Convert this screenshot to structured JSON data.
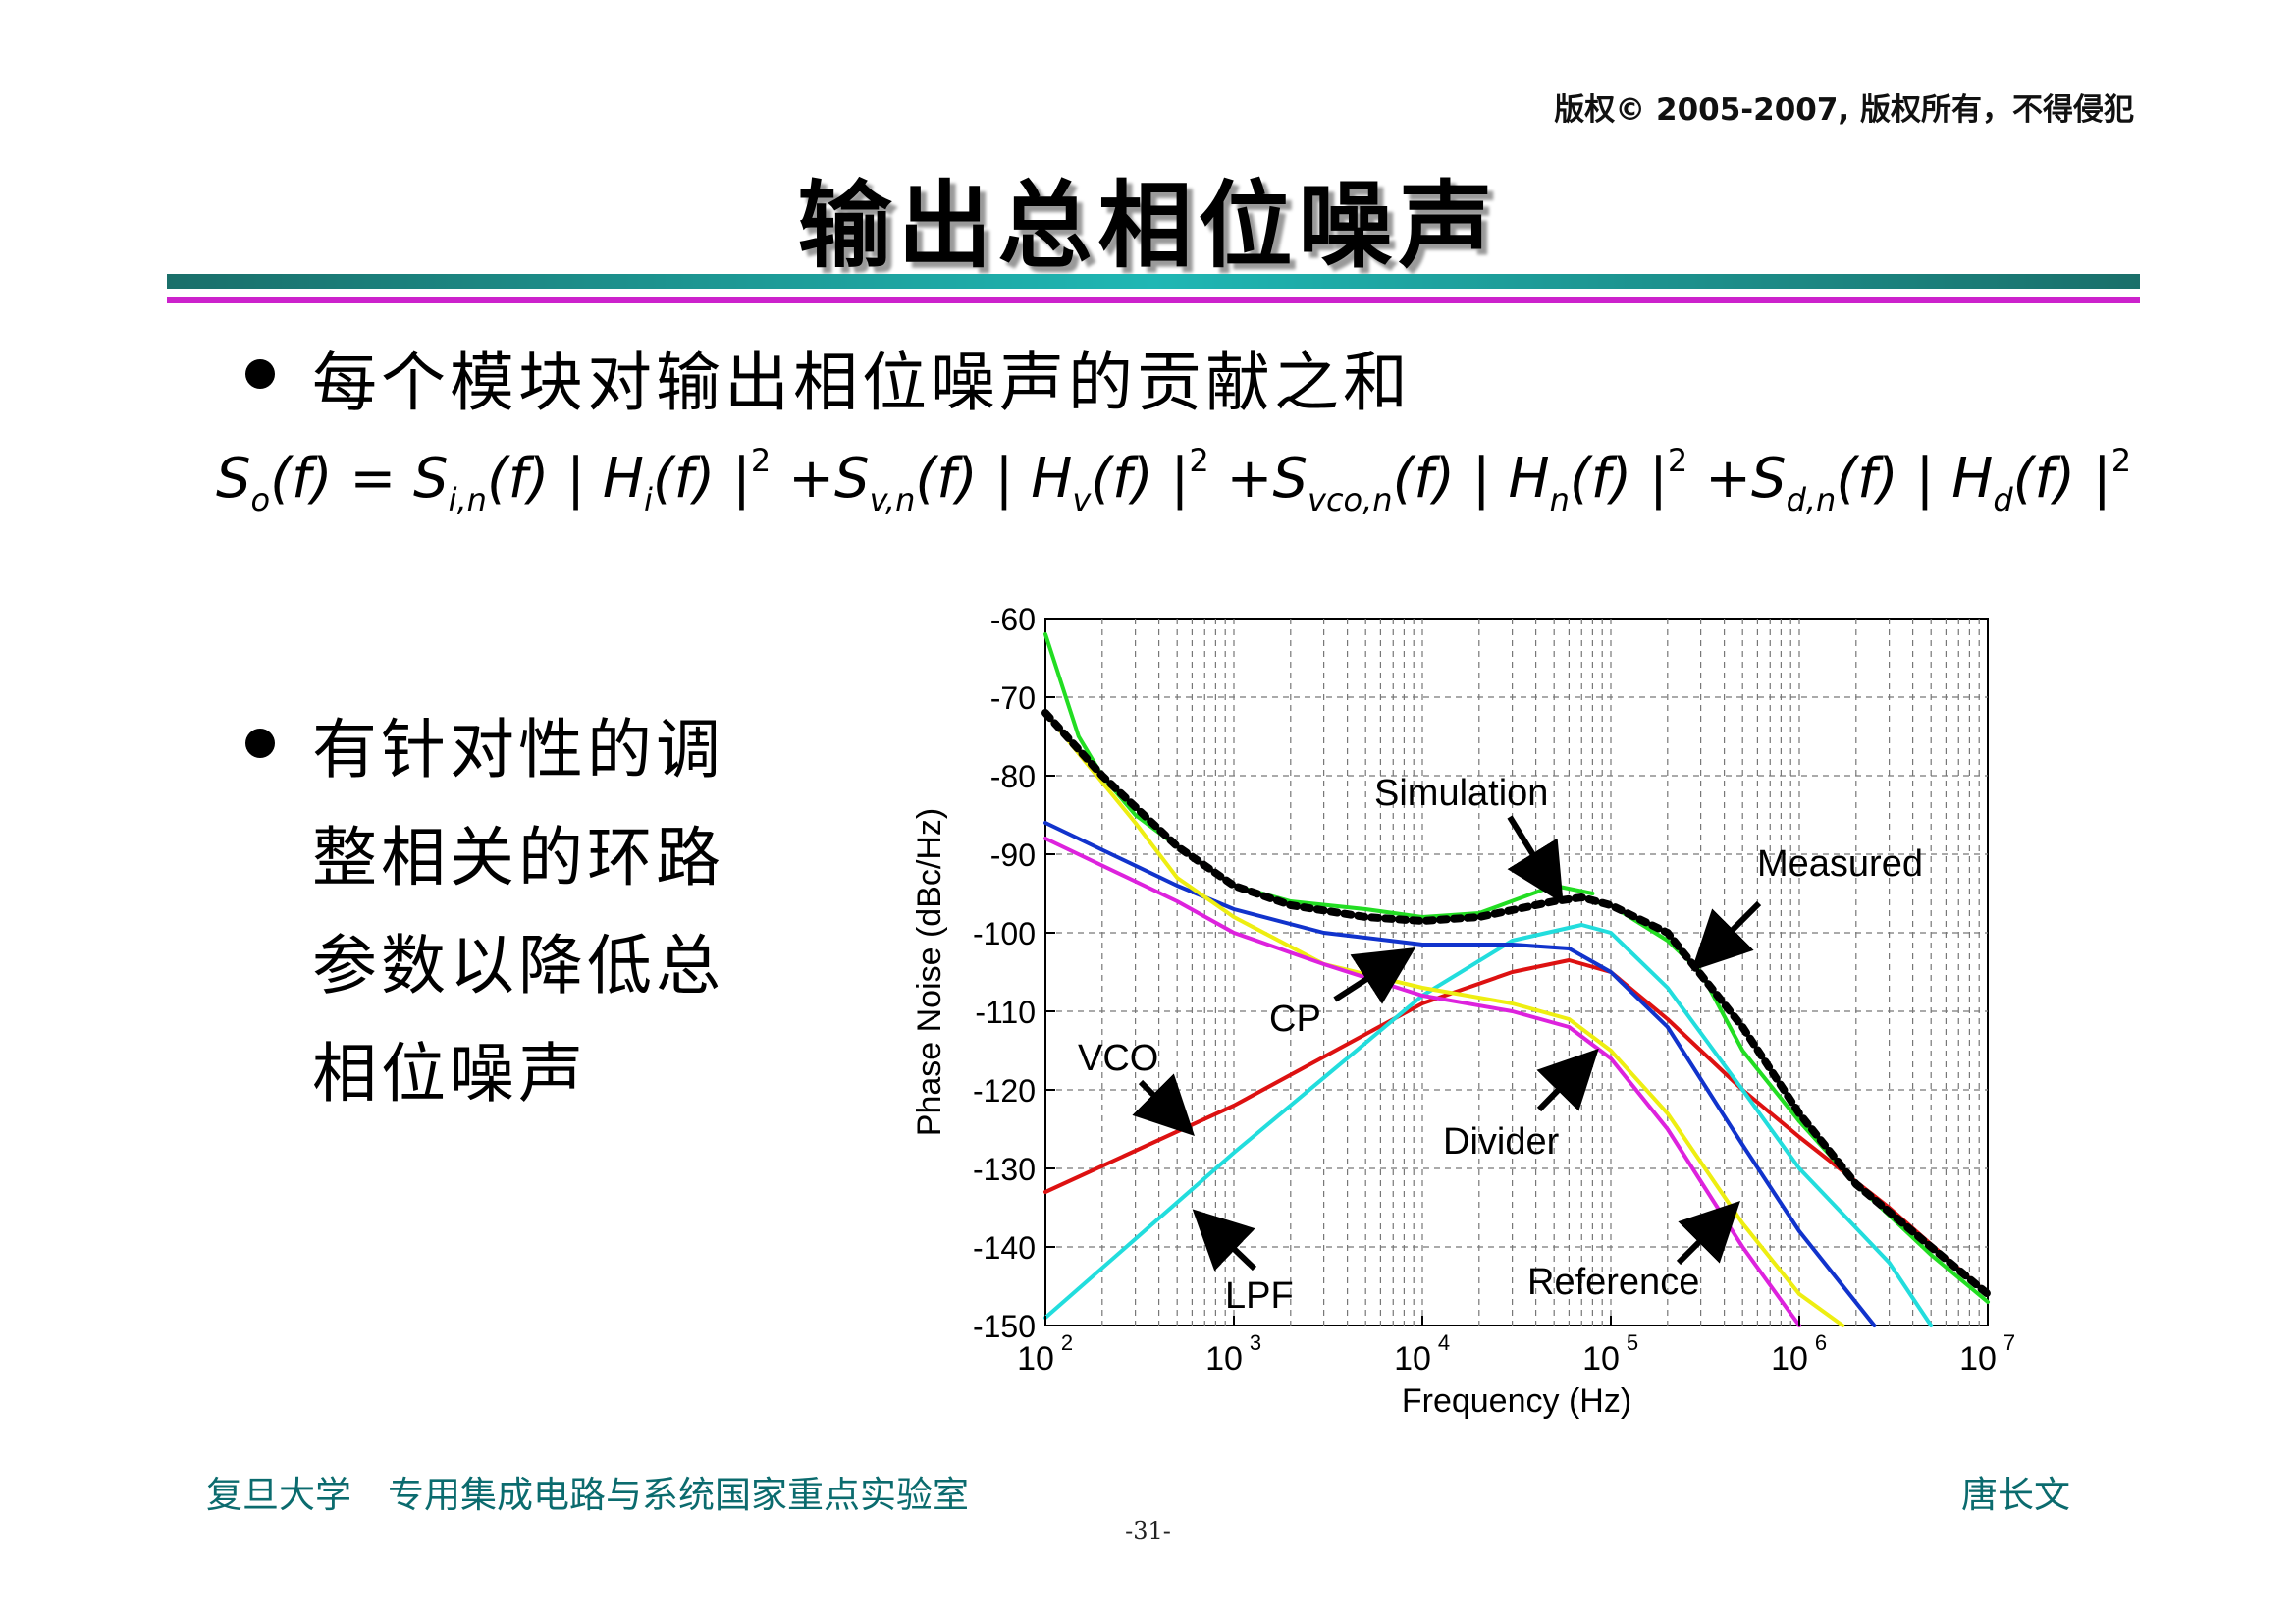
{
  "header": {
    "copyright": "版权© 2005-2007, 版权所有，不得侵犯",
    "title": "输出总相位噪声"
  },
  "bullets": [
    {
      "text": "每个模块对输出相位噪声的贡献之和"
    },
    {
      "lines": [
        "有针对性的调",
        "整相关的环路",
        "参数以降低总",
        "相位噪声"
      ]
    }
  ],
  "formula": "So(f) = Si,n(f)|Hi(f)|² + Sv,n(f)|Hv(f)|² + Svco,n(f)|Hn(f)|² + Sd,n(f)|Hd(f)|²",
  "footer": {
    "left": "复旦大学　专用集成电路与系统国家重点实验室",
    "right": "唐长文",
    "page": "-31-"
  },
  "chart_data": {
    "type": "line",
    "xlabel": "Frequency (Hz)",
    "ylabel": "Phase Noise (dBc/Hz)",
    "xscale": "log",
    "xlim": [
      100,
      10000000
    ],
    "ylim": [
      -150,
      -60
    ],
    "xticks": [
      2,
      3,
      4,
      5,
      6,
      7
    ],
    "yticks": [
      -60,
      -70,
      -80,
      -90,
      -100,
      -110,
      -120,
      -130,
      -140,
      -150
    ],
    "grid": true,
    "series": [
      {
        "name": "Measured",
        "color": "#22dd22",
        "x": [
          100,
          150,
          200,
          300,
          500,
          1000,
          2000,
          5000,
          10000,
          20000,
          50000,
          80000
        ],
        "y": [
          -62,
          -75,
          -80,
          -85,
          -89,
          -94,
          -96,
          -97,
          -98,
          -97.5,
          -94,
          -95
        ]
      },
      {
        "name": "Measured",
        "color": "#22dd22",
        "x": [
          80000,
          100000,
          200000,
          300000,
          500000,
          1000000,
          2000000,
          5000000,
          10000000
        ],
        "y": [
          -96,
          -96.5,
          -101,
          -105,
          -115,
          -124,
          -132,
          -141,
          -147
        ]
      },
      {
        "name": "Simulation",
        "color": "#000000",
        "x": [
          100,
          200,
          500,
          1000,
          2000,
          5000,
          10000,
          20000,
          50000,
          70000,
          100000,
          200000,
          500000,
          1000000,
          2000000,
          5000000,
          10000000
        ],
        "y": [
          -72,
          -80,
          -89,
          -94,
          -96.5,
          -98,
          -98.5,
          -98,
          -96,
          -95.5,
          -96.5,
          -100,
          -112,
          -123,
          -132,
          -140,
          -146
        ]
      },
      {
        "name": "VCO",
        "color": "#dd1111",
        "x": [
          100,
          1000,
          10000,
          30000,
          60000,
          100000,
          200000,
          500000,
          1000000,
          3000000,
          10000000
        ],
        "y": [
          -133,
          -122,
          -109,
          -105,
          -103.5,
          -105,
          -111,
          -120,
          -126,
          -135,
          -146
        ]
      },
      {
        "name": "LPF",
        "color": "#22dddd",
        "x": [
          100,
          1000,
          10000,
          30000,
          70000,
          100000,
          200000,
          500000,
          1000000,
          3000000,
          5000000
        ],
        "y": [
          -149,
          -128,
          -108,
          -101,
          -99,
          -100,
          -107,
          -120,
          -130,
          -142,
          -150
        ]
      },
      {
        "name": "CP",
        "color": "#1133cc",
        "x": [
          100,
          500,
          1000,
          3000,
          10000,
          30000,
          60000,
          100000,
          200000,
          500000,
          1000000,
          2500000
        ],
        "y": [
          -86,
          -94,
          -97,
          -100,
          -101.5,
          -101.5,
          -102,
          -105,
          -112,
          -127,
          -138,
          -150
        ]
      },
      {
        "name": "Divider",
        "color": "#eeee11",
        "x": [
          100,
          300,
          500,
          1000,
          3000,
          10000,
          30000,
          60000,
          100000,
          200000,
          500000,
          1000000,
          1700000
        ],
        "y": [
          -72,
          -86,
          -93,
          -98,
          -104,
          -107,
          -109,
          -111,
          -115,
          -123,
          -137,
          -146,
          -150
        ]
      },
      {
        "name": "Reference",
        "color": "#dd22dd",
        "x": [
          100,
          500,
          1000,
          3000,
          10000,
          30000,
          60000,
          100000,
          200000,
          500000,
          1000000
        ],
        "y": [
          -88,
          -96,
          -100,
          -104,
          -108,
          -110,
          -112,
          -116,
          -125,
          -140,
          -150
        ]
      }
    ],
    "annotations": [
      "Simulation",
      "Measured",
      "CP",
      "VCO",
      "Divider",
      "LPF",
      "Reference"
    ]
  }
}
